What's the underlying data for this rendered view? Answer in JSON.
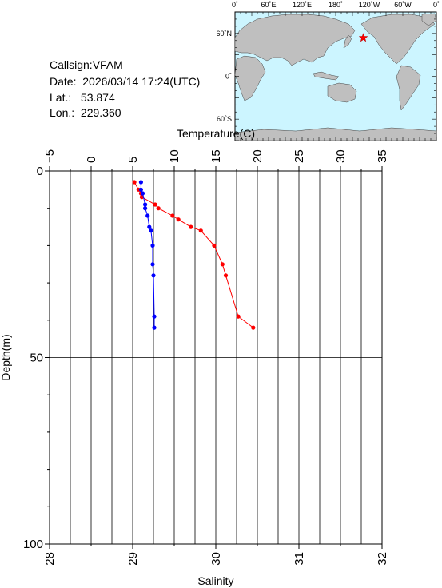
{
  "station": {
    "callsign_label": "Callsign:",
    "callsign": "VFAM",
    "date_label": "Date:",
    "date": "2026/03/14 17:24(UTC)",
    "lat_label": "Lat.:",
    "lat": "53.874",
    "lon_label": "Lon.:",
    "lon": "229.360"
  },
  "map": {
    "lon_ticks": [
      "0˚",
      "60˚E",
      "120˚E",
      "180˚",
      "120˚W",
      "60˚W",
      "0˚"
    ],
    "lat_ticks": [
      "60˚N",
      "0˚",
      "60˚S"
    ],
    "ocean_color": "#ccf5ff",
    "land_color": "#bfbfbf",
    "marker_color": "#ff0000",
    "marker_lon": 229.36,
    "marker_lat": 53.874
  },
  "chart_data": {
    "type": "line",
    "top_axis_label": "Temperature(C)",
    "bottom_axis_label": "Salinity",
    "ylabel": "Depth(m)",
    "temperature_ticks": [
      "−5",
      "0",
      "5",
      "10",
      "15",
      "20",
      "25",
      "30",
      "35"
    ],
    "temperature_range": [
      -5,
      35
    ],
    "salinity_ticks": [
      "28",
      "29",
      "30",
      "31",
      "32"
    ],
    "salinity_range": [
      28,
      32
    ],
    "depth_ticks": [
      "0",
      "50",
      "100"
    ],
    "depth_range": [
      0,
      100
    ],
    "grid": true,
    "series": [
      {
        "color": "#ff0000",
        "points": [
          {
            "x": 5.2,
            "y": 3
          },
          {
            "x": 5.7,
            "y": 5
          },
          {
            "x": 6.0,
            "y": 6
          },
          {
            "x": 6.1,
            "y": 7
          },
          {
            "x": 7.7,
            "y": 9
          },
          {
            "x": 8.1,
            "y": 10
          },
          {
            "x": 9.8,
            "y": 12
          },
          {
            "x": 10.5,
            "y": 13
          },
          {
            "x": 12.0,
            "y": 15
          },
          {
            "x": 13.2,
            "y": 16
          },
          {
            "x": 14.8,
            "y": 20
          },
          {
            "x": 15.8,
            "y": 25
          },
          {
            "x": 16.2,
            "y": 28
          },
          {
            "x": 17.7,
            "y": 39
          },
          {
            "x": 19.5,
            "y": 42
          }
        ]
      },
      {
        "color": "#0000ff",
        "points": [
          {
            "x": 29.1,
            "y": 3
          },
          {
            "x": 29.1,
            "y": 5
          },
          {
            "x": 29.12,
            "y": 6
          },
          {
            "x": 29.15,
            "y": 9
          },
          {
            "x": 29.15,
            "y": 10
          },
          {
            "x": 29.18,
            "y": 12
          },
          {
            "x": 29.2,
            "y": 15
          },
          {
            "x": 29.22,
            "y": 16
          },
          {
            "x": 29.24,
            "y": 20
          },
          {
            "x": 29.24,
            "y": 25
          },
          {
            "x": 29.25,
            "y": 28
          },
          {
            "x": 29.26,
            "y": 39
          },
          {
            "x": 29.26,
            "y": 42
          }
        ]
      }
    ]
  }
}
